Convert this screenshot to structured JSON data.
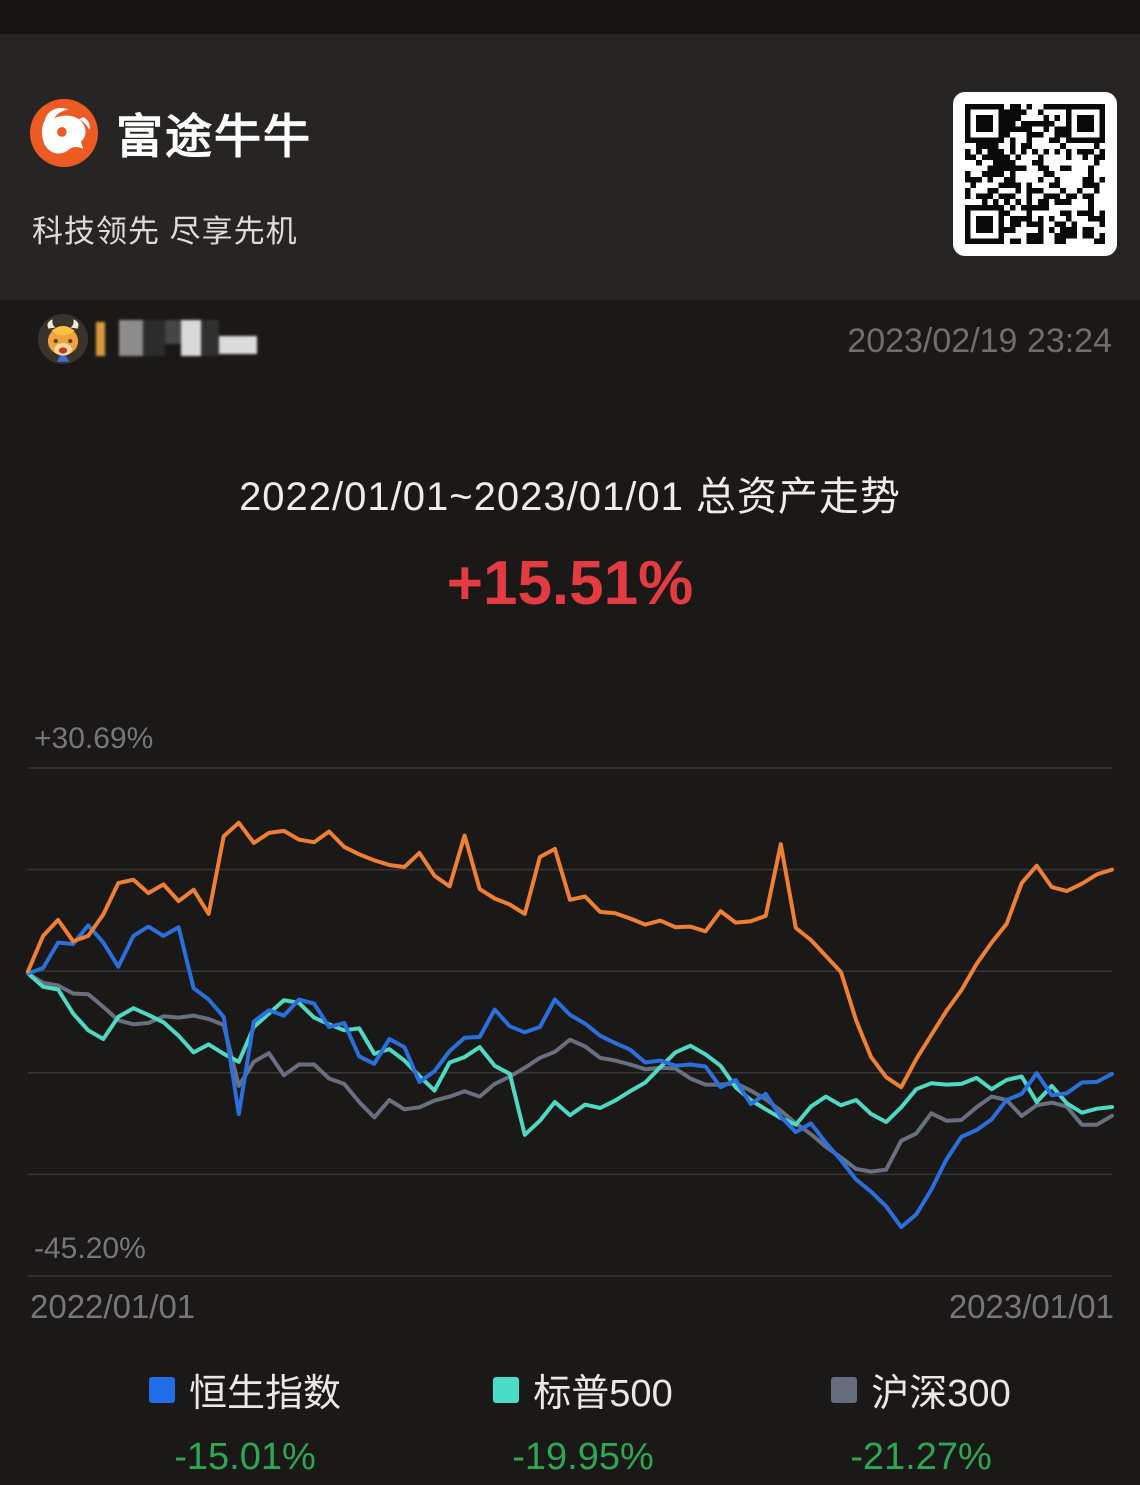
{
  "header": {
    "brand": "富途牛牛",
    "tagline": "科技领先 尽享先机"
  },
  "share": {
    "timestamp": "2023/02/19 23:24"
  },
  "chart_data": {
    "type": "line",
    "title": "2022/01/01~2023/01/01 总资产走势",
    "total_return": "+15.51%",
    "unit": "%",
    "x_axis": {
      "start_label": "2022/01/01",
      "end_label": "2023/01/01"
    },
    "y_axis": {
      "top_label": "+30.69%",
      "bottom_label": "-45.20%",
      "max": 30.69,
      "min": -45.2,
      "gridlines": 6
    },
    "colors": {
      "background": "#1a1918",
      "header_background": "#262524",
      "gridline": "rgba(255,255,255,0.13)",
      "positive_red": "#e23b41",
      "negative_green": "#2fa654",
      "brand_orange": "#ed5a23"
    },
    "series": [
      {
        "name": "总资产",
        "color": "#ee7f33",
        "swatch": "#ee7f33",
        "final": "+15.51%",
        "values": [
          0.3,
          5.6,
          8.0,
          4.8,
          5.6,
          8.8,
          13.5,
          14.0,
          12.0,
          13.3,
          10.8,
          12.5,
          8.9,
          20.5,
          22.5,
          19.5,
          21.0,
          21.3,
          20.0,
          19.6,
          21.2,
          18.9,
          17.8,
          16.9,
          16.2,
          15.9,
          18.0,
          14.6,
          13.0,
          20.6,
          12.6,
          11.2,
          10.3,
          8.9,
          17.4,
          18.6,
          11.0,
          11.5,
          9.2,
          9.0,
          8.2,
          7.3,
          7.9,
          6.9,
          7.0,
          6.3,
          9.3,
          7.6,
          7.8,
          8.6,
          19.3,
          6.8,
          5.0,
          2.6,
          0.2,
          -7.0,
          -12.5,
          -15.5,
          -17.0,
          -12.8,
          -9.2,
          -5.6,
          -2.5,
          1.4,
          4.6,
          7.4,
          13.5,
          16.1,
          12.9,
          12.3,
          13.4,
          14.8,
          15.51
        ]
      },
      {
        "name": "恒生指数",
        "color": "#2a6fdc",
        "swatch": "#1f6ee8",
        "final": "-15.01%",
        "values": [
          0,
          0.8,
          4.6,
          4.4,
          7.2,
          4.6,
          1.0,
          5.6,
          7.0,
          5.6,
          6.9,
          -2.2,
          -3.9,
          -6.5,
          -21.0,
          -7.2,
          -5.5,
          -6.3,
          -3.9,
          -4.5,
          -8.0,
          -7.4,
          -12.4,
          -13.5,
          -9.8,
          -11.0,
          -16.2,
          -14.6,
          -11.6,
          -9.6,
          -9.5,
          -5.4,
          -7.9,
          -8.8,
          -8.0,
          -3.9,
          -6.2,
          -7.5,
          -9.3,
          -10.4,
          -11.4,
          -13.3,
          -13.0,
          -13.8,
          -13.6,
          -13.9,
          -17.0,
          -15.9,
          -19.5,
          -18.0,
          -21.4,
          -23.7,
          -22.4,
          -25.3,
          -27.9,
          -30.8,
          -32.6,
          -34.8,
          -37.9,
          -36.0,
          -32.3,
          -27.8,
          -24.4,
          -23.4,
          -21.8,
          -18.9,
          -18.0,
          -14.9,
          -18.2,
          -17.9,
          -16.3,
          -16.2,
          -15.01
        ]
      },
      {
        "name": "标普500",
        "color": "#50d9c2",
        "swatch": "#49dcc6",
        "final": "-19.95%",
        "values": [
          0,
          -2.0,
          -2.4,
          -6.0,
          -8.5,
          -9.8,
          -6.5,
          -5.2,
          -6.2,
          -7.3,
          -9.3,
          -11.8,
          -10.6,
          -12.0,
          -13.2,
          -8.0,
          -6.0,
          -4.0,
          -4.4,
          -6.6,
          -7.6,
          -8.5,
          -8.2,
          -12.0,
          -11.3,
          -13.0,
          -15.3,
          -17.5,
          -13.3,
          -12.5,
          -11.0,
          -13.8,
          -15.0,
          -24.1,
          -22.0,
          -19.2,
          -21.2,
          -19.6,
          -20.1,
          -19.0,
          -17.6,
          -16.3,
          -14.0,
          -11.8,
          -10.8,
          -12.1,
          -13.8,
          -17.0,
          -18.9,
          -20.3,
          -21.6,
          -22.6,
          -19.9,
          -18.4,
          -19.7,
          -18.9,
          -21.0,
          -22.2,
          -20.0,
          -17.3,
          -16.4,
          -16.6,
          -16.5,
          -15.6,
          -17.3,
          -15.9,
          -15.4,
          -19.2,
          -16.8,
          -19.4,
          -20.8,
          -20.2,
          -19.95
        ]
      },
      {
        "name": "沪深300",
        "color": "#686f7e",
        "swatch": "#666d7e",
        "final": "-21.27%",
        "values": [
          0,
          -1.4,
          -1.8,
          -3.0,
          -3.1,
          -5.0,
          -7.0,
          -7.6,
          -7.4,
          -6.4,
          -6.6,
          -6.3,
          -6.8,
          -7.7,
          -16.8,
          -13.2,
          -11.9,
          -15.2,
          -13.6,
          -13.6,
          -15.7,
          -16.5,
          -19.2,
          -21.5,
          -18.9,
          -20.3,
          -20.0,
          -19.0,
          -18.4,
          -17.6,
          -18.4,
          -16.5,
          -15.4,
          -14.1,
          -12.6,
          -11.7,
          -9.9,
          -10.9,
          -12.6,
          -13.0,
          -13.6,
          -14.3,
          -14.1,
          -14.2,
          -15.7,
          -16.6,
          -16.6,
          -16.4,
          -17.5,
          -18.8,
          -20.5,
          -22.4,
          -24.0,
          -25.9,
          -27.5,
          -29.2,
          -29.6,
          -29.3,
          -25.0,
          -23.9,
          -20.9,
          -22.0,
          -21.9,
          -20.0,
          -18.4,
          -18.9,
          -21.3,
          -19.7,
          -19.3,
          -19.9,
          -22.6,
          -22.6,
          -21.27
        ]
      }
    ]
  }
}
